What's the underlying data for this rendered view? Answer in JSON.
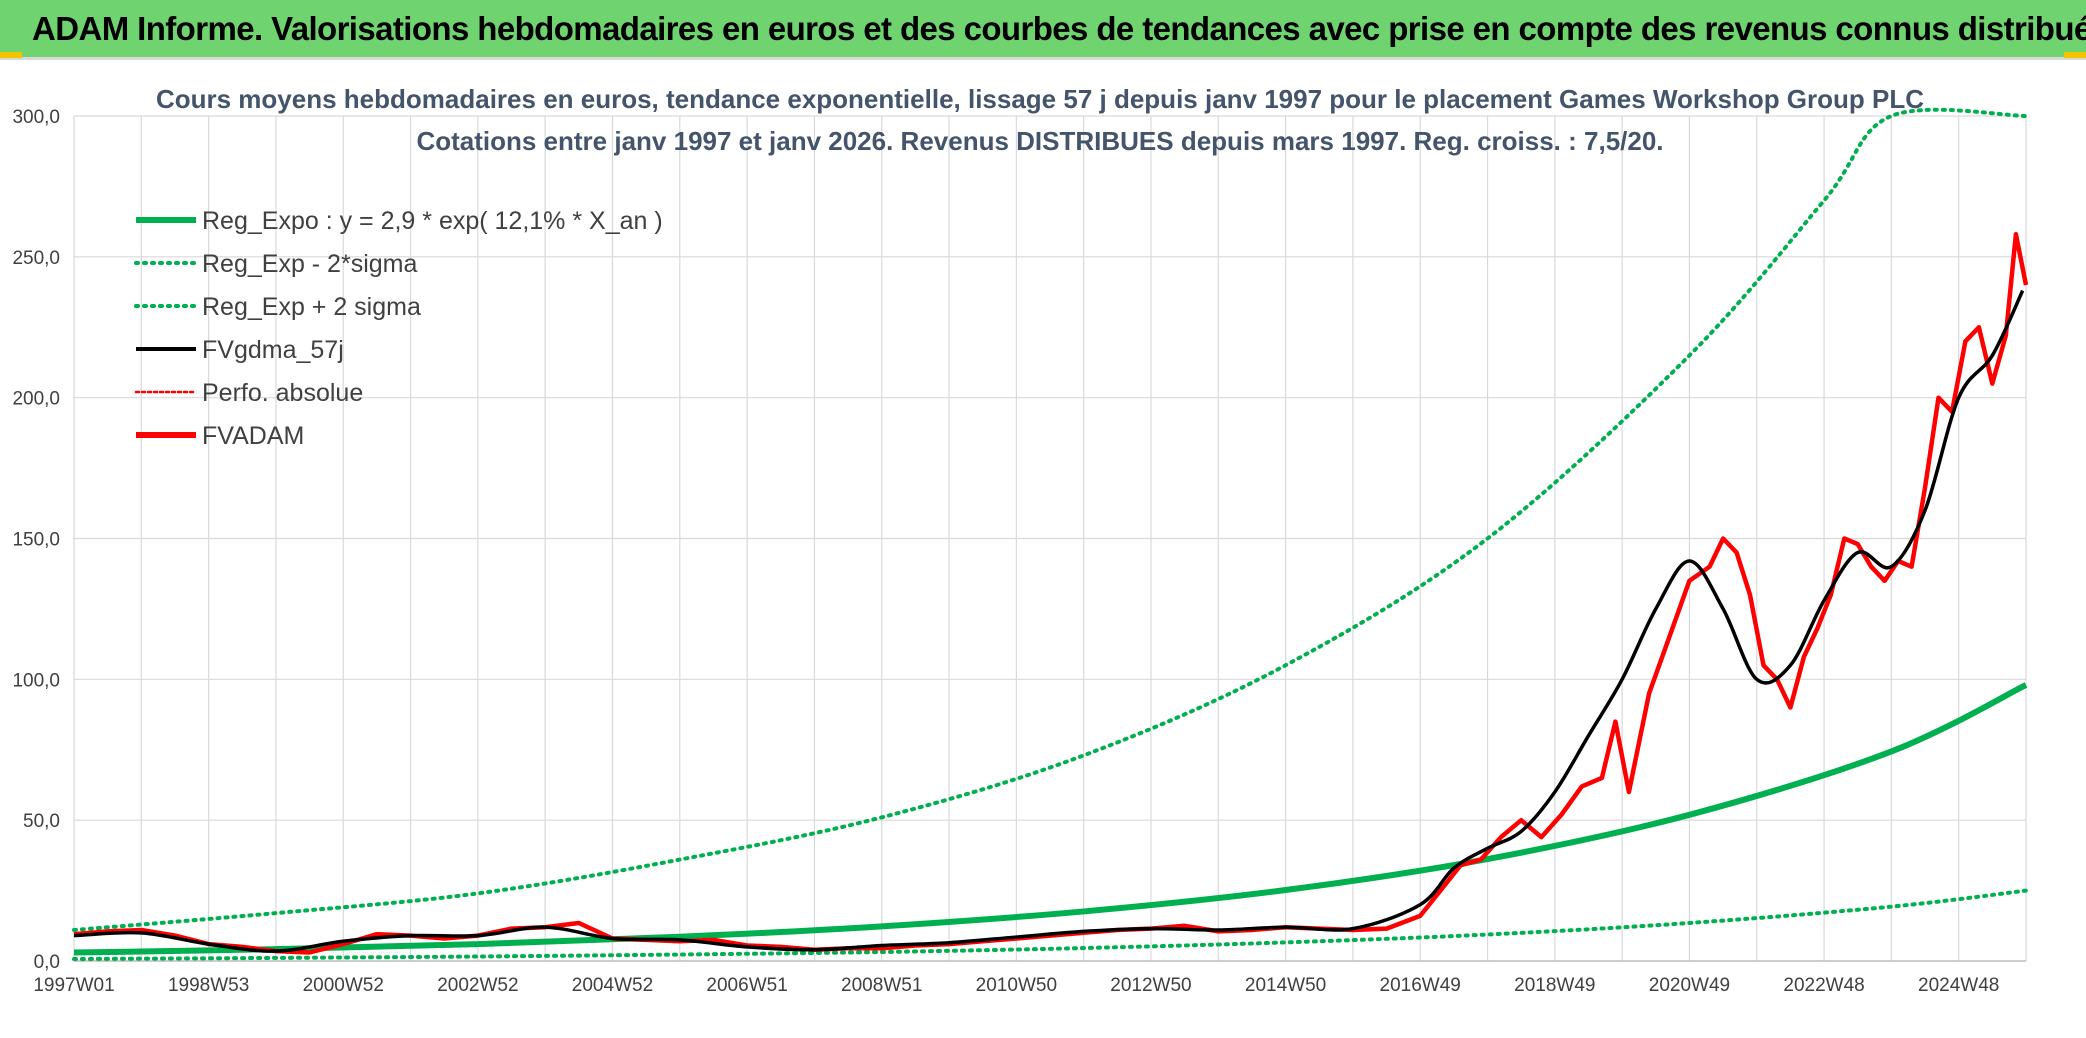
{
  "banner": {
    "title": "ADAM Informe. Valorisations hebdomadaires en euros et des courbes de tendances avec prise en compte des revenus connus distribués"
  },
  "colors": {
    "banner": "#6fd46f",
    "trend": "#00b050",
    "smooth": "#000000",
    "adam": "#ff0000",
    "grid": "#d9d9d9"
  },
  "chart_data": {
    "type": "line",
    "title": "Cours moyens hebdomadaires en euros, tendance exponentielle, lissage 57 j depuis janv 1997 pour le placement Games Workshop Group PLC",
    "subtitle": "Cotations entre janv 1997 et janv 2026. Revenus DISTRIBUES depuis mars 1997. Reg. croiss. : 7,5/20.",
    "x_range": [
      "1997W01",
      "2026W01"
    ],
    "x_ticks": [
      "1997W01",
      "1998W53",
      "2000W52",
      "2002W52",
      "2004W52",
      "2006W51",
      "2008W51",
      "2010W50",
      "2012W50",
      "2014W50",
      "2016W49",
      "2018W49",
      "2020W49",
      "2022W48",
      "2024W48"
    ],
    "y_ticks": [
      "0,0",
      "50,0",
      "100,0",
      "150,0",
      "200,0",
      "250,0",
      "300,0"
    ],
    "ylim": [
      0,
      300
    ],
    "grid": true,
    "legend_position": "top-left",
    "legend": [
      {
        "label": "Reg_Expo : y = 2,9 * exp( 12,1% *  X_an )",
        "style": "solid-thick",
        "color": "#00b050"
      },
      {
        "label": "Reg_Exp - 2*sigma",
        "style": "dotted",
        "color": "#00b050"
      },
      {
        "label": "Reg_Exp + 2 sigma",
        "style": "dotted",
        "color": "#00b050"
      },
      {
        "label": "FVgdma_57j",
        "style": "solid",
        "color": "#000000"
      },
      {
        "label": "Perfo. absolue",
        "style": "dotted",
        "color": "#ff0000"
      },
      {
        "label": "FVADAM",
        "style": "solid-thick",
        "color": "#ff0000"
      }
    ],
    "series": [
      {
        "name": "Reg_Expo : y = 2,9 * exp( 12,1% *  X_an )",
        "x": [
          1997.0,
          2000.0,
          2003.0,
          2006.0,
          2009.0,
          2012.0,
          2015.0,
          2018.0,
          2021.0,
          2024.0,
          2026.0
        ],
        "values": [
          3.0,
          4.2,
          6.0,
          8.6,
          12.3,
          17.6,
          25.2,
          36.2,
          51.9,
          74.4,
          98.0
        ]
      },
      {
        "name": "Reg_Exp - 2*sigma",
        "x": [
          1997.0,
          2000.0,
          2003.0,
          2006.0,
          2009.0,
          2012.0,
          2015.0,
          2018.0,
          2021.0,
          2024.0,
          2026.0
        ],
        "values": [
          0.7,
          1.1,
          1.6,
          2.3,
          3.2,
          4.6,
          6.6,
          9.4,
          13.5,
          19.3,
          25.0
        ]
      },
      {
        "name": "Reg_Exp + 2 sigma",
        "x": [
          1997.0,
          2000.0,
          2003.0,
          2006.0,
          2009.0,
          2012.0,
          2015.0,
          2018.0,
          2021.0,
          2023.0,
          2024.0,
          2026.0
        ],
        "values": [
          11.0,
          17.0,
          24.0,
          36.0,
          51.0,
          73.0,
          105.0,
          150.0,
          215.0,
          270.0,
          300.0,
          300.0
        ]
      },
      {
        "name": "FVgdma_57j",
        "x": [
          1997.0,
          1998.0,
          1999.0,
          2000.0,
          2001.0,
          2002.0,
          2003.0,
          2004.0,
          2005.0,
          2006.0,
          2007.0,
          2008.0,
          2009.0,
          2010.0,
          2011.0,
          2012.0,
          2013.0,
          2014.0,
          2015.0,
          2016.0,
          2017.0,
          2017.5,
          2018.0,
          2018.5,
          2019.0,
          2019.5,
          2020.0,
          2020.5,
          2021.0,
          2021.5,
          2022.0,
          2022.5,
          2023.0,
          2023.5,
          2024.0,
          2024.5,
          2025.0,
          2025.5,
          2025.95
        ],
        "values": [
          9.0,
          10.0,
          6.0,
          3.5,
          7.0,
          9.0,
          9.0,
          12.0,
          8.0,
          7.5,
          5.0,
          4.0,
          5.5,
          6.5,
          8.5,
          10.5,
          11.5,
          11.0,
          12.0,
          11.5,
          20.0,
          33.0,
          40.0,
          46.0,
          60.0,
          80.0,
          100.0,
          125.0,
          142.0,
          125.0,
          100.0,
          105.0,
          128.0,
          145.0,
          140.0,
          160.0,
          200.0,
          215.0,
          238.0
        ]
      },
      {
        "name": "FVADAM",
        "x": [
          1997.0,
          1997.5,
          1998.0,
          1998.5,
          1999.0,
          1999.5,
          2000.0,
          2000.5,
          2001.0,
          2001.5,
          2002.0,
          2002.5,
          2003.0,
          2003.5,
          2004.0,
          2004.5,
          2005.0,
          2005.5,
          2006.0,
          2006.5,
          2007.0,
          2007.5,
          2008.0,
          2008.5,
          2009.0,
          2009.5,
          2010.0,
          2010.5,
          2011.0,
          2011.5,
          2012.0,
          2012.5,
          2013.0,
          2013.5,
          2014.0,
          2014.5,
          2015.0,
          2015.5,
          2016.0,
          2016.5,
          2017.0,
          2017.3,
          2017.6,
          2017.9,
          2018.2,
          2018.5,
          2018.8,
          2019.1,
          2019.4,
          2019.7,
          2019.9,
          2020.1,
          2020.4,
          2020.7,
          2021.0,
          2021.3,
          2021.5,
          2021.7,
          2021.9,
          2022.1,
          2022.3,
          2022.5,
          2022.7,
          2022.9,
          2023.1,
          2023.3,
          2023.5,
          2023.7,
          2023.9,
          2024.1,
          2024.3,
          2024.5,
          2024.7,
          2024.9,
          2025.1,
          2025.3,
          2025.5,
          2025.7,
          2025.85,
          2026.0
        ],
        "values": [
          9.5,
          10.5,
          11.0,
          9.0,
          6.0,
          5.0,
          3.5,
          3.0,
          6.0,
          9.5,
          9.0,
          8.0,
          9.0,
          11.5,
          12.0,
          13.5,
          8.0,
          7.5,
          7.0,
          7.5,
          5.5,
          5.0,
          4.0,
          4.5,
          4.5,
          5.5,
          6.0,
          7.0,
          8.0,
          9.0,
          10.0,
          11.0,
          11.5,
          12.5,
          10.5,
          11.0,
          12.0,
          11.5,
          11.0,
          11.5,
          16.0,
          25.0,
          34.0,
          36.0,
          44.0,
          50.0,
          44.0,
          52.0,
          62.0,
          65.0,
          85.0,
          60.0,
          95.0,
          115.0,
          135.0,
          140.0,
          150.0,
          145.0,
          130.0,
          105.0,
          100.0,
          90.0,
          108.0,
          118.0,
          130.0,
          150.0,
          148.0,
          140.0,
          135.0,
          142.0,
          140.0,
          168.0,
          200.0,
          195.0,
          220.0,
          225.0,
          205.0,
          222.0,
          258.0,
          240.0
        ]
      }
    ]
  }
}
